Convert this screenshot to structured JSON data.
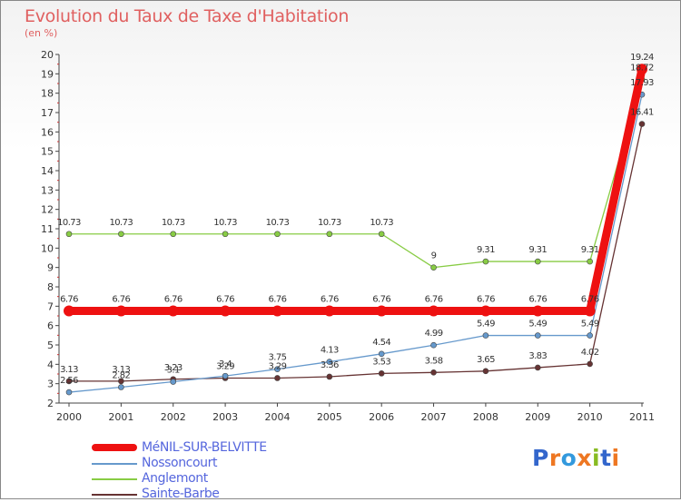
{
  "header": {
    "title": "Evolution du Taux de Taxe d'Habitation",
    "subtitle": "(en %)"
  },
  "chart_data": {
    "type": "line",
    "title": "Evolution du Taux de Taxe d'Habitation",
    "subtitle": "(en %)",
    "xlabel": "",
    "ylabel": "",
    "x": [
      "2000",
      "2001",
      "2002",
      "2003",
      "2004",
      "2005",
      "2006",
      "2007",
      "2008",
      "2009",
      "2010",
      "2011"
    ],
    "ylim": [
      2,
      20
    ],
    "yticks": [
      2,
      3,
      4,
      5,
      6,
      7,
      8,
      9,
      10,
      11,
      12,
      13,
      14,
      15,
      16,
      17,
      18,
      19,
      20
    ],
    "grid": false,
    "legend_position": "bottom-left",
    "series": [
      {
        "name": "MéNIL-SUR-BELVITTE",
        "color": "#ee1111",
        "values": [
          6.76,
          6.76,
          6.76,
          6.76,
          6.76,
          6.76,
          6.76,
          6.76,
          6.76,
          6.76,
          6.76,
          19.24
        ],
        "labels": [
          "6.76",
          "6.76",
          "6.76",
          "6.76",
          "6.76",
          "6.76",
          "6.76",
          "6.76",
          "6.76",
          "6.76",
          "6.76",
          "19.24"
        ]
      },
      {
        "name": "Nossoncourt",
        "color": "#6699cc",
        "values": [
          2.56,
          2.82,
          3.1,
          3.4,
          3.75,
          4.13,
          4.54,
          4.99,
          5.49,
          5.49,
          5.49,
          17.93
        ],
        "labels": [
          "2.56",
          "2.82",
          "3.1",
          "3.4",
          "3.75",
          "4.13",
          "4.54",
          "4.99",
          "5.49",
          "5.49",
          "5.49",
          "17.93"
        ]
      },
      {
        "name": "Anglemont",
        "color": "#88cc44",
        "values": [
          10.73,
          10.73,
          10.73,
          10.73,
          10.73,
          10.73,
          10.73,
          9,
          9.31,
          9.31,
          9.31,
          18.72
        ],
        "labels": [
          "10.73",
          "10.73",
          "10.73",
          "10.73",
          "10.73",
          "10.73",
          "10.73",
          "9",
          "9.31",
          "9.31",
          "9.31",
          "18.72"
        ]
      },
      {
        "name": "Sainte-Barbe",
        "color": "#663333",
        "values": [
          3.13,
          3.13,
          3.23,
          3.29,
          3.29,
          3.36,
          3.53,
          3.58,
          3.65,
          3.83,
          4.02,
          16.41
        ],
        "labels": [
          "3.13",
          "3.13",
          "3.23",
          "3.29",
          "3.29",
          "3.36",
          "3.53",
          "3.58",
          "3.65",
          "3.83",
          "4.02",
          "16.41"
        ]
      }
    ]
  },
  "branding": {
    "logo_letters": [
      "P",
      "r",
      "o",
      "x",
      "i",
      "t",
      "i"
    ],
    "logo_colors": [
      "#3366cc",
      "#ee7722",
      "#3399dd",
      "#ee7722",
      "#88bb22",
      "#3366cc",
      "#ee7722"
    ]
  }
}
